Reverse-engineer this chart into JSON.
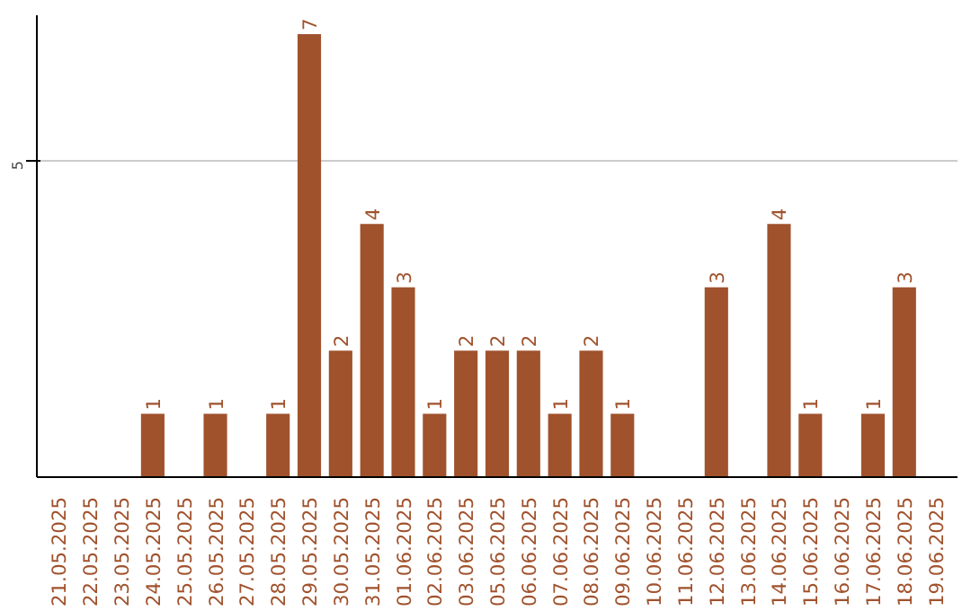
{
  "chart_data": {
    "type": "bar",
    "categories": [
      "21.05.2025",
      "22.05.2025",
      "23.05.2025",
      "24.05.2025",
      "25.05.2025",
      "26.05.2025",
      "27.05.2025",
      "28.05.2025",
      "29.05.2025",
      "30.05.2025",
      "31.05.2025",
      "01.06.2025",
      "02.06.2025",
      "03.06.2025",
      "05.06.2025",
      "06.06.2025",
      "07.06.2025",
      "08.06.2025",
      "09.06.2025",
      "10.06.2025",
      "11.06.2025",
      "12.06.2025",
      "13.06.2025",
      "14.06.2025",
      "15.06.2025",
      "16.06.2025",
      "17.06.2025",
      "18.06.2025",
      "19.06.2025"
    ],
    "values": [
      0,
      0,
      0,
      1,
      0,
      1,
      0,
      1,
      7,
      2,
      4,
      3,
      1,
      2,
      2,
      2,
      1,
      2,
      1,
      0,
      0,
      3,
      0,
      4,
      1,
      0,
      1,
      3,
      0
    ],
    "value_labels": [
      null,
      null,
      null,
      "1",
      null,
      "1",
      null,
      "1",
      "7",
      "2",
      "4",
      "3",
      "1",
      "2",
      "2",
      "2",
      "1",
      "2",
      "1",
      null,
      null,
      "3",
      null,
      "4",
      "1",
      null,
      "1",
      "3",
      null
    ],
    "color": "#a0522d",
    "ylim": [
      0,
      7.3
    ],
    "yticks": [
      5
    ],
    "grid": "y"
  }
}
